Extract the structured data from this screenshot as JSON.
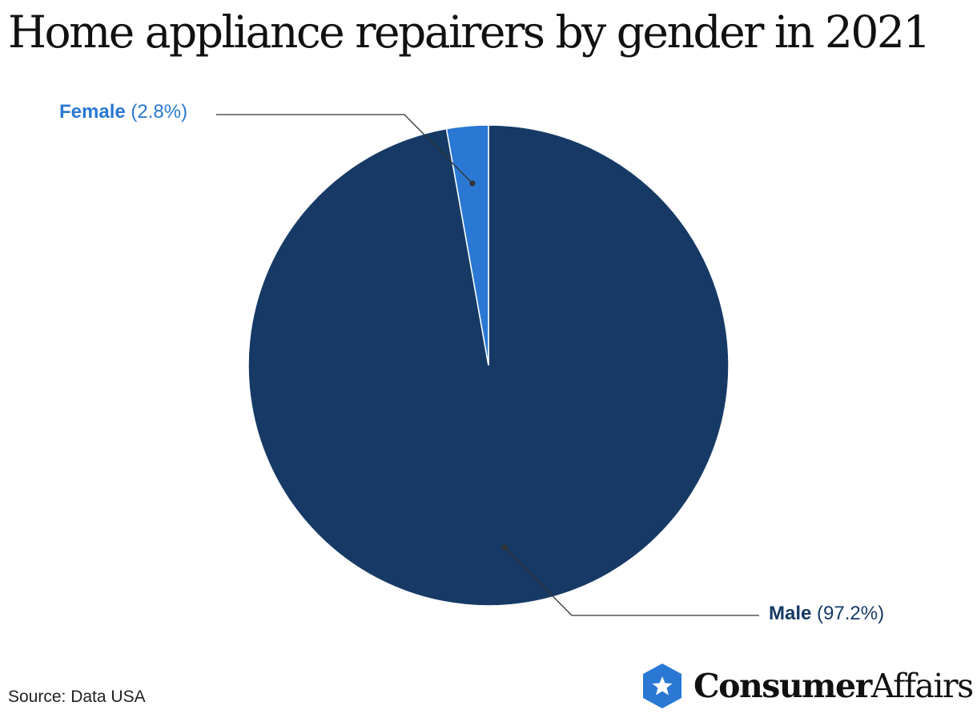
{
  "title": "Home appliance repairers by gender in 2021",
  "chart_data": {
    "type": "pie",
    "title": "Home appliance repairers by gender in 2021",
    "slices": [
      {
        "name": "Female",
        "value": 2.8,
        "value_label": "(2.8%)",
        "color": "#2a78d4"
      },
      {
        "name": "Male",
        "value": 97.2,
        "value_label": "(97.2%)",
        "color": "#163a65"
      }
    ]
  },
  "source": "Source: Data USA",
  "logo": {
    "brand_bold": "Consumer",
    "brand_regular": "Affairs",
    "icon": "star-shield-icon"
  }
}
